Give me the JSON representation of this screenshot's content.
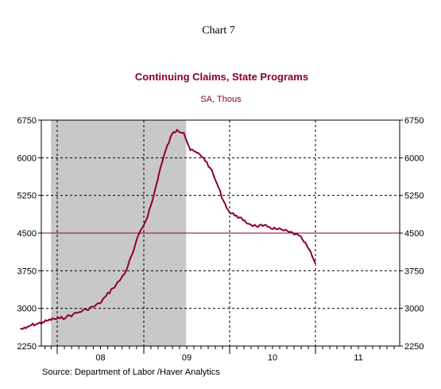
{
  "header": {
    "chart_number": "Chart 7"
  },
  "footer": {
    "source": "Source:  Department of Labor /Haver Analytics"
  },
  "colors": {
    "series": "#8b0025",
    "reference_line": "#8b0025",
    "recession": "#c8c8c8",
    "axis": "#000000"
  },
  "chart_data": {
    "type": "line",
    "title": "Continuing Claims, State Programs",
    "subtitle": "SA, Thous",
    "xlabel": "",
    "ylabel": "",
    "x_tick_labels": [
      "08",
      "09",
      "10",
      "11"
    ],
    "ylim": [
      2250,
      6750
    ],
    "y_ticks": [
      2250,
      3000,
      3750,
      4500,
      5250,
      6000,
      6750
    ],
    "y_tick_labels": [
      "2250",
      "3000",
      "3750",
      "4500",
      "5250",
      "6000",
      "6750"
    ],
    "dual_y_axis": true,
    "grid": {
      "horizontal": "dashed",
      "vertical": "dashed at year-start and mid-year"
    },
    "reference_line": {
      "y": 4500
    },
    "recession_shading": {
      "start": "2007-12",
      "end": "2009-06"
    },
    "series": [
      {
        "values_by_week": [
          [
            "2007-06-30",
            2590
          ],
          [
            "2007-07-28",
            2600
          ],
          [
            "2007-08-25",
            2670
          ],
          [
            "2007-09-22",
            2690
          ],
          [
            "2007-10-20",
            2720
          ],
          [
            "2007-11-17",
            2760
          ],
          [
            "2007-12-15",
            2790
          ],
          [
            "2008-01-12",
            2800
          ],
          [
            "2008-02-09",
            2830
          ],
          [
            "2008-03-08",
            2880
          ],
          [
            "2008-04-05",
            2930
          ],
          [
            "2008-05-03",
            2980
          ],
          [
            "2008-05-31",
            3030
          ],
          [
            "2008-06-28",
            3100
          ],
          [
            "2008-07-26",
            3250
          ],
          [
            "2008-08-23",
            3400
          ],
          [
            "2008-09-20",
            3550
          ],
          [
            "2008-10-18",
            3750
          ],
          [
            "2008-11-15",
            4100
          ],
          [
            "2008-12-13",
            4500
          ],
          [
            "2009-01-10",
            4750
          ],
          [
            "2009-02-07",
            5150
          ],
          [
            "2009-03-07",
            5700
          ],
          [
            "2009-04-04",
            6150
          ],
          [
            "2009-05-02",
            6480
          ],
          [
            "2009-05-23",
            6560
          ],
          [
            "2009-06-20",
            6500
          ],
          [
            "2009-07-18",
            6150
          ],
          [
            "2009-08-15",
            6100
          ],
          [
            "2009-09-12",
            6000
          ],
          [
            "2009-10-10",
            5800
          ],
          [
            "2009-11-07",
            5500
          ],
          [
            "2009-12-05",
            5150
          ],
          [
            "2010-01-02",
            4900
          ],
          [
            "2010-01-30",
            4850
          ],
          [
            "2010-02-27",
            4750
          ],
          [
            "2010-03-27",
            4680
          ],
          [
            "2010-04-24",
            4640
          ],
          [
            "2010-05-22",
            4640
          ],
          [
            "2010-06-19",
            4620
          ],
          [
            "2010-07-17",
            4580
          ],
          [
            "2010-08-14",
            4560
          ],
          [
            "2010-09-11",
            4520
          ],
          [
            "2010-10-09",
            4480
          ],
          [
            "2010-11-06",
            4380
          ],
          [
            "2010-12-04",
            4180
          ],
          [
            "2011-01-01",
            3890
          ]
        ]
      }
    ]
  }
}
